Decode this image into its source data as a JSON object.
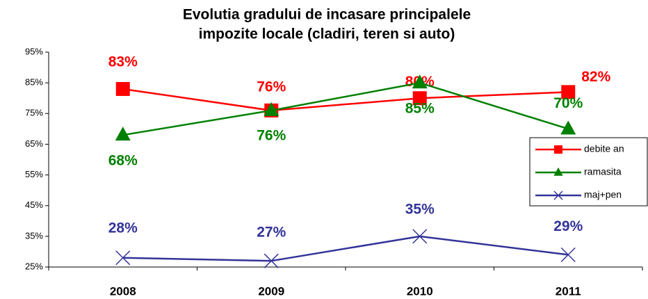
{
  "chart_data": {
    "type": "line",
    "title": [
      "Evolutia gradului de incasare principalele",
      "impozite locale    (cladiri, teren si auto)"
    ],
    "categories": [
      "2008",
      "2009",
      "2010",
      "2011"
    ],
    "series": [
      {
        "name": "debite an",
        "color": "#ff0000",
        "marker": "square",
        "values": [
          83,
          76,
          80,
          82
        ],
        "value_labels": [
          "83%",
          "76%",
          "80%",
          "82%"
        ]
      },
      {
        "name": "ramasita",
        "color": "#008000",
        "marker": "triangle",
        "values": [
          68,
          76,
          85,
          70
        ],
        "value_labels": [
          "68%",
          "76%",
          "85%",
          "70%"
        ]
      },
      {
        "name": "maj+pen",
        "color": "#333399",
        "marker": "x",
        "values": [
          28,
          27,
          35,
          29
        ],
        "value_labels": [
          "28%",
          "27%",
          "35%",
          "29%"
        ]
      }
    ],
    "ylim": [
      25,
      95
    ],
    "yticks": [
      {
        "value": 25,
        "label": "25%"
      },
      {
        "value": 35,
        "label": "35%"
      },
      {
        "value": 45,
        "label": "45%"
      },
      {
        "value": 55,
        "label": "55%"
      },
      {
        "value": 65,
        "label": "65%"
      },
      {
        "value": 75,
        "label": "75%"
      },
      {
        "value": 85,
        "label": "85%"
      },
      {
        "value": 95,
        "label": "95%"
      }
    ],
    "grid": false,
    "legend": "right"
  }
}
